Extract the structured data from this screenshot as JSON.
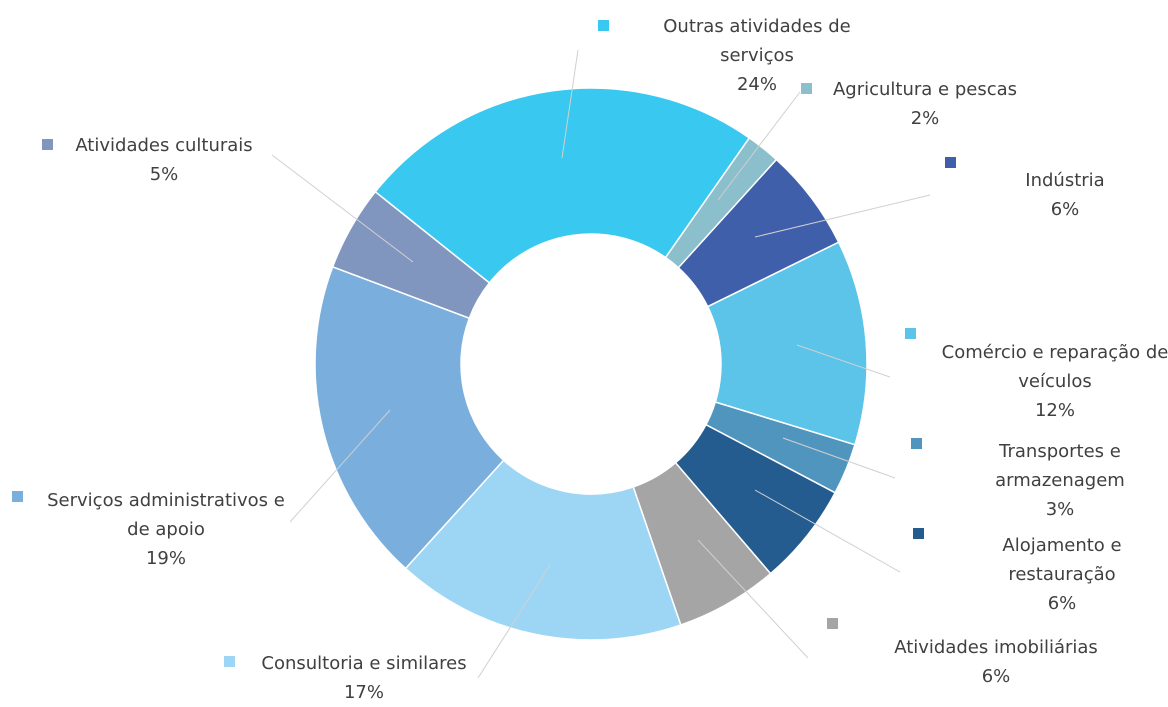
{
  "chart_data": {
    "type": "donut",
    "categories": [
      "Agricultura e pescas",
      "Indústria",
      "Comércio e reparação de veículos",
      "Transportes e armazenagem",
      "Alojamento e restauração",
      "Atividades imobiliárias",
      "Consultoria e similares",
      "Serviços administrativos e de apoio",
      "Atividades culturais",
      "Outras atividades de serviços"
    ],
    "values": [
      2,
      6,
      12,
      3,
      6,
      6,
      17,
      19,
      5,
      24
    ],
    "value_labels": [
      "2%",
      "6%",
      "12%",
      "3%",
      "6%",
      "6%",
      "17%",
      "19%",
      "5%",
      "24%"
    ],
    "colors": [
      "#8bbfcc",
      "#3f5faa",
      "#5bc4e8",
      "#5095bd",
      "#245c8f",
      "#a5a5a5",
      "#9dd6f5",
      "#7aaedd",
      "#8096bf",
      "#38c8f0"
    ]
  }
}
